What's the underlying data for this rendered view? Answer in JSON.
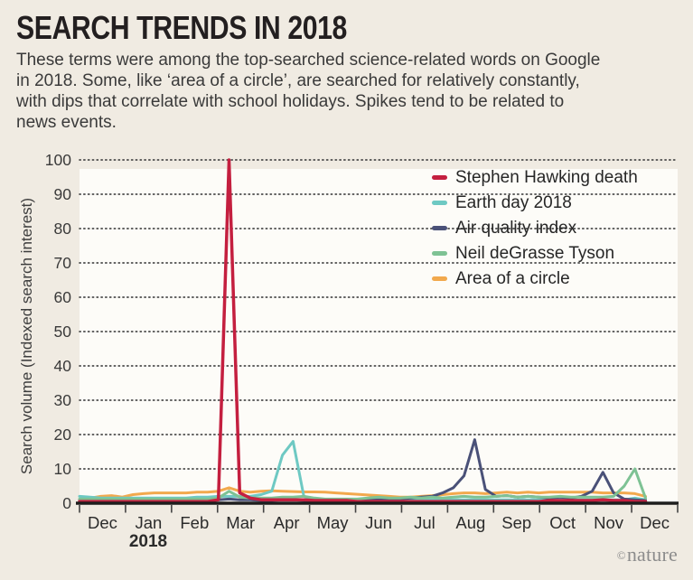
{
  "header": {
    "title": "SEARCH TRENDS IN 2018",
    "description": "These terms were among the top-searched science-related words on Google\nin 2018. Some, like ‘area of a circle’, are searched for relatively constantly,\nwith dips that correlate with school holidays. Spikes tend to be related to\nnews events."
  },
  "footer": {
    "brand_symbol": "©",
    "brand": "nature"
  },
  "colors": {
    "background": "#f0ebe2",
    "plot_panel": "#fdfcf8",
    "axis": "#1d1d1d",
    "gridline": "#4b4b4b",
    "tick_label": "#3a3a3a",
    "month_label": "#2b2b2b"
  },
  "chart_data": {
    "type": "line",
    "title": "SEARCH TRENDS IN 2018",
    "xlabel": "",
    "ylabel": "Search volume (Indexed search interest)",
    "ylim": [
      0,
      100
    ],
    "yticks": [
      0,
      10,
      20,
      30,
      40,
      50,
      60,
      70,
      80,
      90,
      100
    ],
    "grid": "horizontal dotted",
    "legend_position": "top-right inside plot",
    "x_unit": "weekly points, Dec 2017 through early Dec 2018",
    "month_labels": [
      "Dec",
      "Jan",
      "Feb",
      "Mar",
      "Apr",
      "May",
      "Jun",
      "Jul",
      "Aug",
      "Sep",
      "Oct",
      "Nov",
      "Dec"
    ],
    "year_label": "2018",
    "series": [
      {
        "name": "Stephen Hawking death",
        "color": "#c41f3f",
        "values": [
          0.5,
          0.5,
          0.5,
          0.5,
          0.5,
          0.5,
          0.5,
          0.5,
          0.5,
          0.5,
          0.5,
          0.5,
          0.5,
          1,
          100,
          3,
          1.5,
          1,
          1,
          1,
          1,
          1,
          0.8,
          0.8,
          0.8,
          0.8,
          0.5,
          0.5,
          0.5,
          0.5,
          0.5,
          0.5,
          0.5,
          0.5,
          0.5,
          0.5,
          0.5,
          0.5,
          0.5,
          0.5,
          0.5,
          0.5,
          0.5,
          0.5,
          0.8,
          0.8,
          0.8,
          0.8,
          0.8,
          1,
          0.8,
          0.8,
          0.5,
          0.5
        ]
      },
      {
        "name": "Earth day 2018",
        "color": "#6ec9c3",
        "values": [
          2,
          1.8,
          1.5,
          1.5,
          1.5,
          1.5,
          1.5,
          1.5,
          1.5,
          1.5,
          1.5,
          1.8,
          1.8,
          2,
          2,
          2,
          2,
          2.5,
          3.5,
          14,
          18,
          2,
          1,
          1,
          1,
          1,
          1,
          1,
          1,
          1,
          1,
          1,
          1,
          1,
          1,
          1,
          1,
          1,
          1,
          1,
          1,
          1,
          1,
          1,
          1,
          1,
          1,
          1,
          1,
          1,
          1,
          1,
          1.5,
          1
        ]
      },
      {
        "name": "Air quality index",
        "color": "#4a5178",
        "values": [
          1,
          1,
          1,
          1,
          1,
          1,
          1,
          1,
          1,
          1,
          1,
          1,
          1,
          1,
          1.2,
          1,
          1,
          0.8,
          0.8,
          1,
          1,
          0.8,
          0.8,
          0.8,
          0.8,
          0.8,
          0.8,
          1,
          1,
          1,
          1.2,
          1.5,
          1.8,
          2,
          3,
          4.5,
          8,
          18.5,
          4,
          2,
          2.2,
          1.8,
          2,
          1.8,
          1.5,
          1.8,
          1.5,
          2,
          3.5,
          9,
          3,
          1.2,
          1,
          0.8
        ]
      },
      {
        "name": "Neil deGrasse Tyson",
        "color": "#7ec294",
        "values": [
          1.2,
          1.2,
          1.2,
          1.2,
          1.2,
          1.2,
          1.2,
          1.2,
          1.2,
          1.2,
          1.2,
          1.2,
          1.2,
          1.5,
          3.5,
          1.8,
          1.5,
          1.5,
          1.5,
          1.8,
          1.8,
          2,
          1.5,
          1.2,
          1.2,
          1.2,
          1.2,
          1.5,
          1.8,
          1.5,
          1.5,
          1.8,
          1.5,
          1.8,
          1.5,
          1.8,
          2,
          1.8,
          1.8,
          2,
          2.2,
          1.8,
          2,
          1.8,
          1.8,
          2,
          1.8,
          1.8,
          1.8,
          1.8,
          2,
          5,
          10,
          1.5
        ]
      },
      {
        "name": "Area of a circle",
        "color": "#f2a94d",
        "values": [
          1,
          1.5,
          2,
          2.2,
          1.8,
          2.5,
          2.8,
          3,
          3,
          3,
          3,
          3.2,
          3.2,
          3.5,
          4.5,
          3.5,
          3.2,
          3.5,
          3.6,
          3.5,
          3.4,
          3.3,
          3.3,
          3.2,
          3,
          2.8,
          2.6,
          2.4,
          2.2,
          2,
          1.8,
          1.8,
          2,
          2.2,
          2.5,
          2.8,
          3,
          3,
          2.8,
          3,
          3.2,
          3,
          3.2,
          3,
          3.2,
          3.2,
          3.2,
          3.2,
          3.2,
          3,
          3,
          3,
          2.8,
          2
        ]
      }
    ]
  }
}
